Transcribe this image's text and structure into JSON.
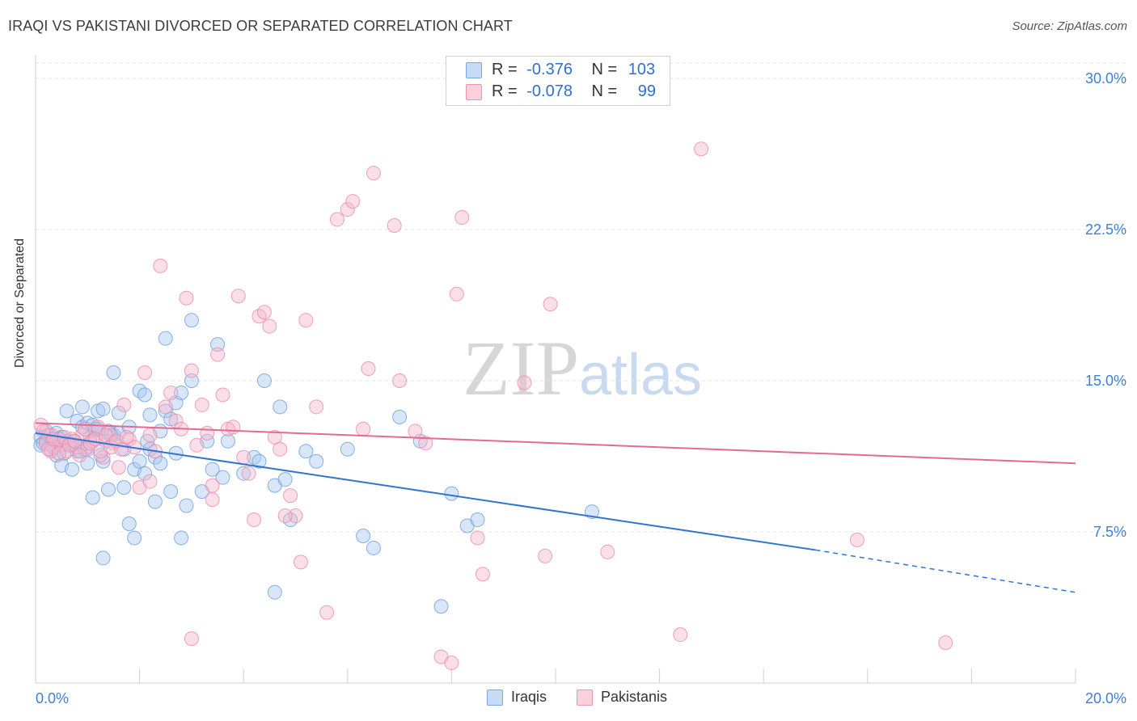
{
  "title": "IRAQI VS PAKISTANI DIVORCED OR SEPARATED CORRELATION CHART",
  "source": "Source: ZipAtlas.com",
  "watermark": "ZIPatlas",
  "legend": {
    "rows": [
      {
        "r_label": "R =",
        "r_value": "-0.376",
        "n_label": "N =",
        "n_value": "103",
        "color": "#a8c8f0"
      },
      {
        "r_label": "R =",
        "r_value": "-0.078",
        "n_label": "N =",
        "n_value": "99",
        "color": "#f5b8cb"
      }
    ]
  },
  "bottom_legend": [
    {
      "label": "Iraqis",
      "color": "#a8c8f0"
    },
    {
      "label": "Pakistanis",
      "color": "#f5b8cb"
    }
  ],
  "chart_data": {
    "type": "scatter",
    "title": "IRAQI VS PAKISTANI DIVORCED OR SEPARATED CORRELATION CHART",
    "xlabel": "",
    "ylabel": "Divorced or Separated",
    "xlim": [
      0,
      20
    ],
    "ylim": [
      0,
      30
    ],
    "x_tick_labels": [
      "0.0%",
      "20.0%"
    ],
    "y_ticks": [
      7.5,
      15.0,
      22.5,
      30.0
    ],
    "y_tick_labels": [
      "7.5%",
      "15.0%",
      "22.5%",
      "30.0%"
    ],
    "grid": true,
    "legend_position": "top-center",
    "series": [
      {
        "name": "Iraqis",
        "color": "#6a9fe0",
        "fill": "#a8c8f0",
        "line_color": "#2f74d0",
        "trend": {
          "x0": 0,
          "y0": 12.4,
          "x1": 15.0,
          "y1": 6.6,
          "dash_to_x": 20.0,
          "dash_to_y": 4.5
        },
        "points": [
          [
            0.1,
            12.2
          ],
          [
            0.1,
            11.8
          ],
          [
            0.2,
            12.5
          ],
          [
            0.2,
            12.0
          ],
          [
            0.3,
            11.6
          ],
          [
            0.3,
            12.1
          ],
          [
            0.4,
            12.4
          ],
          [
            0.4,
            11.3
          ],
          [
            0.5,
            10.8
          ],
          [
            0.5,
            12.2
          ],
          [
            0.6,
            13.5
          ],
          [
            0.6,
            12.0
          ],
          [
            0.7,
            11.8
          ],
          [
            0.7,
            10.6
          ],
          [
            0.8,
            13.0
          ],
          [
            0.8,
            11.5
          ],
          [
            0.9,
            12.7
          ],
          [
            0.9,
            13.7
          ],
          [
            1.0,
            11.7
          ],
          [
            1.0,
            12.9
          ],
          [
            1.0,
            10.9
          ],
          [
            1.1,
            9.2
          ],
          [
            1.1,
            12.8
          ],
          [
            1.2,
            13.5
          ],
          [
            1.2,
            12.6
          ],
          [
            1.3,
            11.0
          ],
          [
            1.3,
            13.6
          ],
          [
            1.4,
            12.5
          ],
          [
            1.4,
            9.6
          ],
          [
            1.5,
            15.4
          ],
          [
            1.5,
            12.3
          ],
          [
            1.6,
            13.4
          ],
          [
            1.6,
            12.4
          ],
          [
            1.7,
            11.6
          ],
          [
            1.7,
            9.7
          ],
          [
            1.8,
            12.7
          ],
          [
            1.8,
            7.9
          ],
          [
            1.9,
            10.6
          ],
          [
            1.9,
            7.2
          ],
          [
            2.0,
            14.5
          ],
          [
            2.0,
            11.0
          ],
          [
            2.1,
            14.3
          ],
          [
            2.1,
            10.4
          ],
          [
            2.2,
            13.3
          ],
          [
            2.2,
            11.6
          ],
          [
            2.3,
            11.2
          ],
          [
            2.3,
            9.0
          ],
          [
            2.4,
            12.5
          ],
          [
            2.4,
            10.9
          ],
          [
            2.5,
            13.5
          ],
          [
            2.5,
            17.1
          ],
          [
            2.6,
            13.1
          ],
          [
            2.6,
            9.5
          ],
          [
            2.7,
            11.4
          ],
          [
            2.7,
            13.9
          ],
          [
            2.8,
            14.4
          ],
          [
            2.8,
            7.2
          ],
          [
            2.9,
            8.8
          ],
          [
            3.0,
            15.0
          ],
          [
            3.0,
            18.0
          ],
          [
            3.2,
            9.5
          ],
          [
            3.3,
            12.0
          ],
          [
            3.4,
            10.6
          ],
          [
            3.5,
            16.8
          ],
          [
            3.6,
            10.2
          ],
          [
            3.7,
            12.0
          ],
          [
            4.0,
            10.4
          ],
          [
            4.2,
            11.2
          ],
          [
            4.3,
            11.0
          ],
          [
            4.4,
            15.0
          ],
          [
            4.6,
            9.8
          ],
          [
            4.7,
            13.7
          ],
          [
            4.8,
            10.1
          ],
          [
            4.9,
            8.1
          ],
          [
            5.2,
            11.5
          ],
          [
            5.4,
            11.0
          ],
          [
            6.0,
            11.6
          ],
          [
            6.3,
            7.3
          ],
          [
            6.5,
            6.7
          ],
          [
            7.0,
            13.2
          ],
          [
            7.4,
            12.0
          ],
          [
            8.0,
            9.4
          ],
          [
            8.3,
            7.8
          ],
          [
            8.5,
            8.1
          ],
          [
            10.7,
            8.5
          ],
          [
            0.15,
            11.9
          ],
          [
            0.25,
            12.3
          ],
          [
            0.35,
            11.7
          ],
          [
            0.45,
            12.1
          ],
          [
            0.55,
            11.4
          ],
          [
            0.65,
            11.9
          ],
          [
            0.75,
            12.0
          ],
          [
            0.85,
            11.5
          ],
          [
            0.95,
            11.6
          ],
          [
            1.05,
            12.2
          ],
          [
            1.15,
            12.6
          ],
          [
            1.25,
            11.3
          ],
          [
            1.35,
            12.0
          ],
          [
            1.45,
            12.3
          ],
          [
            2.15,
            12.0
          ],
          [
            4.6,
            4.5
          ],
          [
            7.8,
            3.8
          ],
          [
            1.3,
            6.2
          ]
        ]
      },
      {
        "name": "Pakistanis",
        "color": "#ee8aa8",
        "fill": "#f5b8cb",
        "line_color": "#e46a92",
        "trend": {
          "x0": 0,
          "y0": 12.9,
          "x1": 20.0,
          "y1": 10.9
        },
        "points": [
          [
            0.1,
            12.8
          ],
          [
            0.2,
            11.9
          ],
          [
            0.3,
            12.3
          ],
          [
            0.3,
            11.5
          ],
          [
            0.4,
            12.0
          ],
          [
            0.5,
            11.8
          ],
          [
            0.6,
            11.5
          ],
          [
            0.7,
            12.1
          ],
          [
            0.8,
            11.7
          ],
          [
            0.9,
            12.3
          ],
          [
            1.0,
            11.6
          ],
          [
            1.1,
            12.0
          ],
          [
            1.2,
            12.7
          ],
          [
            1.3,
            11.2
          ],
          [
            1.4,
            12.4
          ],
          [
            1.5,
            11.9
          ],
          [
            1.6,
            10.7
          ],
          [
            1.7,
            13.8
          ],
          [
            1.8,
            12.1
          ],
          [
            1.9,
            11.7
          ],
          [
            2.0,
            9.7
          ],
          [
            2.1,
            15.4
          ],
          [
            2.2,
            12.3
          ],
          [
            2.3,
            11.5
          ],
          [
            2.4,
            20.7
          ],
          [
            2.5,
            13.7
          ],
          [
            2.6,
            14.4
          ],
          [
            2.7,
            13.0
          ],
          [
            2.8,
            12.6
          ],
          [
            2.9,
            19.1
          ],
          [
            3.0,
            15.5
          ],
          [
            3.1,
            11.8
          ],
          [
            3.2,
            13.8
          ],
          [
            3.3,
            12.4
          ],
          [
            3.4,
            9.8
          ],
          [
            3.5,
            16.3
          ],
          [
            3.6,
            14.3
          ],
          [
            3.7,
            12.6
          ],
          [
            3.8,
            12.7
          ],
          [
            3.9,
            19.2
          ],
          [
            4.0,
            11.2
          ],
          [
            4.1,
            10.4
          ],
          [
            4.2,
            8.1
          ],
          [
            4.3,
            18.2
          ],
          [
            4.4,
            18.4
          ],
          [
            4.5,
            17.7
          ],
          [
            4.6,
            12.2
          ],
          [
            4.7,
            11.6
          ],
          [
            4.9,
            9.3
          ],
          [
            5.0,
            8.3
          ],
          [
            5.1,
            6.0
          ],
          [
            5.2,
            18.0
          ],
          [
            5.4,
            13.7
          ],
          [
            5.6,
            3.5
          ],
          [
            5.8,
            23.0
          ],
          [
            6.0,
            23.5
          ],
          [
            6.1,
            23.9
          ],
          [
            6.3,
            12.6
          ],
          [
            6.4,
            15.6
          ],
          [
            6.5,
            25.3
          ],
          [
            6.9,
            22.7
          ],
          [
            7.0,
            15.0
          ],
          [
            7.3,
            12.5
          ],
          [
            7.5,
            11.9
          ],
          [
            7.8,
            1.3
          ],
          [
            8.0,
            1.0
          ],
          [
            8.1,
            19.3
          ],
          [
            8.2,
            23.1
          ],
          [
            8.5,
            7.2
          ],
          [
            8.6,
            5.4
          ],
          [
            9.4,
            14.9
          ],
          [
            9.8,
            6.3
          ],
          [
            9.9,
            18.8
          ],
          [
            11.0,
            6.5
          ],
          [
            12.4,
            2.4
          ],
          [
            12.8,
            26.5
          ],
          [
            15.8,
            7.1
          ],
          [
            17.5,
            2.0
          ],
          [
            3.0,
            2.2
          ],
          [
            0.15,
            12.5
          ],
          [
            0.25,
            11.6
          ],
          [
            0.35,
            12.1
          ],
          [
            0.45,
            11.4
          ],
          [
            0.55,
            12.2
          ],
          [
            0.65,
            11.8
          ],
          [
            0.75,
            12.0
          ],
          [
            0.85,
            11.3
          ],
          [
            0.95,
            12.6
          ],
          [
            1.05,
            11.9
          ],
          [
            1.15,
            12.1
          ],
          [
            1.25,
            11.5
          ],
          [
            1.35,
            12.3
          ],
          [
            1.45,
            11.7
          ],
          [
            1.55,
            12.0
          ],
          [
            1.65,
            11.6
          ],
          [
            1.75,
            12.2
          ],
          [
            3.4,
            9.1
          ],
          [
            2.2,
            10.0
          ],
          [
            4.8,
            8.3
          ]
        ]
      }
    ]
  }
}
